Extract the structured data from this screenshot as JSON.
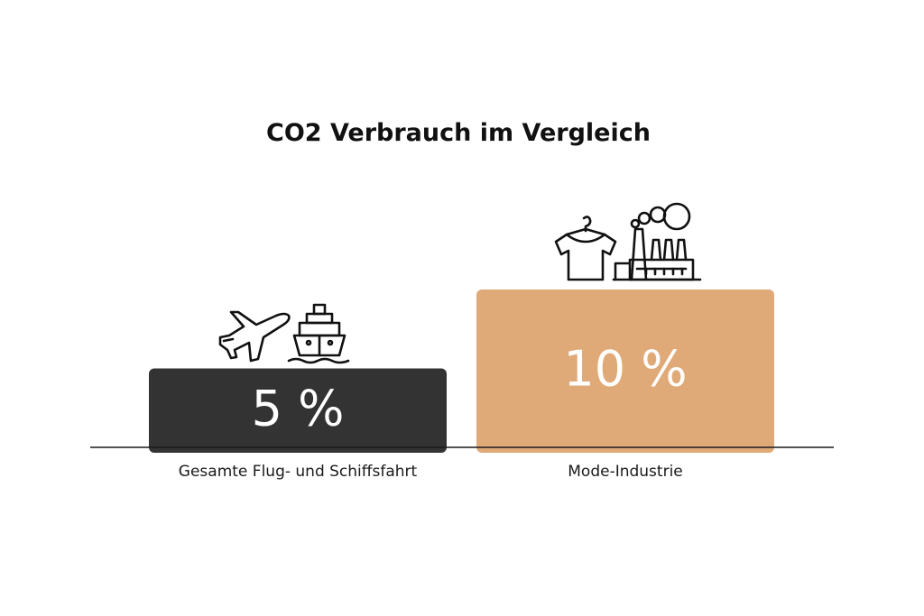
{
  "chart_data": {
    "type": "bar",
    "title": "CO2 Verbrauch im Vergleich",
    "xlabel": "",
    "ylabel": "",
    "categories": [
      "Gesamte Flug- und Schiffsfahrt",
      "Mode-Industrie"
    ],
    "values": [
      5,
      10
    ],
    "value_labels": [
      "5 %",
      "10 %"
    ],
    "ylim": [
      0,
      10
    ],
    "grid": false,
    "colors": [
      "#333333",
      "#e0a978"
    ],
    "icons": [
      [
        "airplane-icon",
        "ship-icon"
      ],
      [
        "tshirt-hanger-icon",
        "factory-icon"
      ]
    ]
  }
}
